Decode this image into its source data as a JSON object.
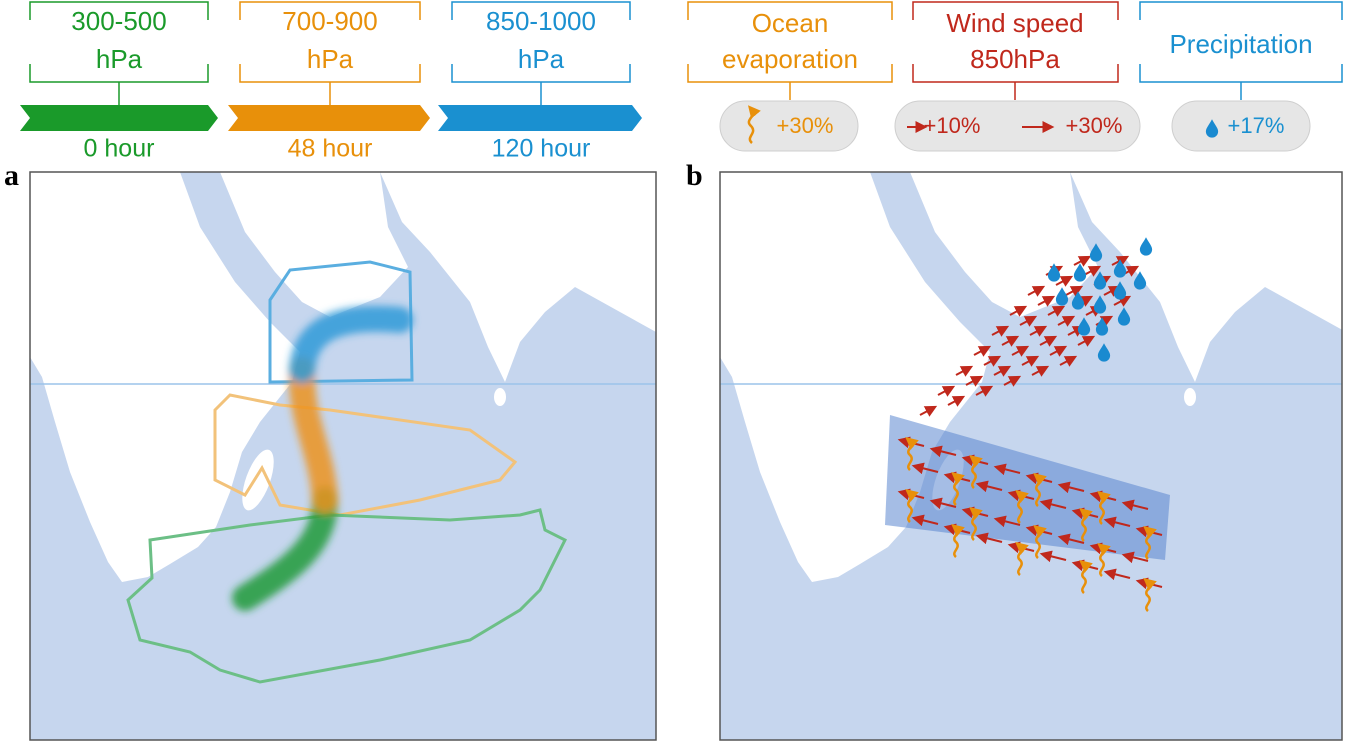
{
  "legend": {
    "levels": [
      {
        "pressure": "300-500",
        "unit": "hPa",
        "time": "0 hour"
      },
      {
        "pressure": "700-900",
        "unit": "hPa",
        "time": "48 hour"
      },
      {
        "pressure": "850-1000",
        "unit": "hPa",
        "time": "120 hour"
      }
    ]
  },
  "effects": [
    {
      "title_lines": [
        "Ocean",
        "evaporation"
      ],
      "values": [
        "+30%"
      ]
    },
    {
      "title_lines": [
        "Wind speed",
        "850hPa"
      ],
      "values": [
        "+10%",
        "+30%"
      ]
    },
    {
      "title_lines": [
        "Precipitation"
      ],
      "values": [
        "+17%"
      ]
    }
  ],
  "panels": [
    "a",
    "b"
  ]
}
